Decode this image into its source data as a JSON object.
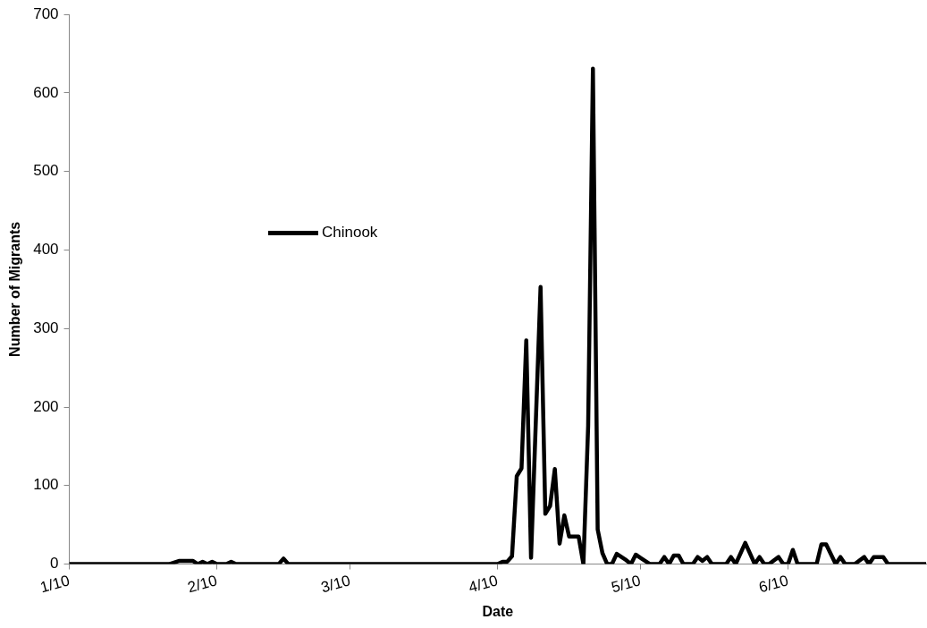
{
  "chart_data": {
    "type": "line",
    "xlabel": "Date",
    "ylabel": "Number of Migrants",
    "xlim": [
      "--01-10",
      "--07-09"
    ],
    "xticks": [
      {
        "value": "--01-10",
        "label": "1/10"
      },
      {
        "value": "--02-10",
        "label": "2/10"
      },
      {
        "value": "--03-10",
        "label": "3/10"
      },
      {
        "value": "--04-10",
        "label": "4/10"
      },
      {
        "value": "--05-10",
        "label": "5/10"
      },
      {
        "value": "--06-10",
        "label": "6/10"
      }
    ],
    "ylim": [
      0,
      700
    ],
    "yticks": [
      0,
      100,
      200,
      300,
      400,
      500,
      600,
      700
    ],
    "grid": false,
    "legend": "top left",
    "marker": "none",
    "line_style": "solid",
    "series": [
      {
        "name": "Chinook",
        "color": "#000000",
        "x": [
          "--01-10",
          "--01-31",
          "--02-02",
          "--02-05",
          "--02-06",
          "--02-07",
          "--02-08",
          "--02-09",
          "--02-10",
          "--02-12",
          "--02-13",
          "--02-14",
          "--02-23",
          "--02-24",
          "--02-25",
          "--04-10",
          "--04-11",
          "--04-12",
          "--04-13",
          "--04-14",
          "--04-15",
          "--04-16",
          "--04-17",
          "--04-19",
          "--04-20",
          "--04-21",
          "--04-22",
          "--04-23",
          "--04-24",
          "--04-25",
          "--04-27",
          "--04-28",
          "--04-29",
          "--04-30",
          "--05-01",
          "--05-02",
          "--05-03",
          "--05-04",
          "--05-05",
          "--05-07",
          "--05-08",
          "--05-09",
          "--05-10",
          "--05-11",
          "--05-12",
          "--05-14",
          "--05-15",
          "--05-16",
          "--05-17",
          "--05-18",
          "--05-19",
          "--05-21",
          "--05-22",
          "--05-23",
          "--05-24",
          "--05-25",
          "--05-28",
          "--05-29",
          "--05-30",
          "--06-01",
          "--06-03",
          "--06-04",
          "--06-05",
          "--06-06",
          "--06-08",
          "--06-09",
          "--06-10",
          "--06-11",
          "--06-12",
          "--06-16",
          "--06-17",
          "--06-18",
          "--06-20",
          "--06-21",
          "--06-22",
          "--06-24",
          "--06-26",
          "--06-27",
          "--06-28",
          "--06-30",
          "--07-01",
          "--07-09"
        ],
        "values": [
          0,
          0,
          4,
          4,
          0,
          3,
          0,
          3,
          0,
          0,
          3,
          0,
          0,
          7,
          0,
          0,
          3,
          3,
          10,
          112,
          122,
          285,
          8,
          353,
          64,
          74,
          121,
          26,
          62,
          35,
          35,
          0,
          176,
          631,
          44,
          14,
          0,
          0,
          13,
          5,
          0,
          12,
          8,
          4,
          0,
          0,
          9,
          0,
          11,
          11,
          0,
          0,
          9,
          4,
          9,
          0,
          0,
          9,
          0,
          27,
          0,
          9,
          0,
          0,
          9,
          0,
          0,
          18,
          0,
          0,
          25,
          25,
          0,
          9,
          0,
          0,
          9,
          0,
          9,
          9,
          0,
          0
        ]
      }
    ]
  }
}
